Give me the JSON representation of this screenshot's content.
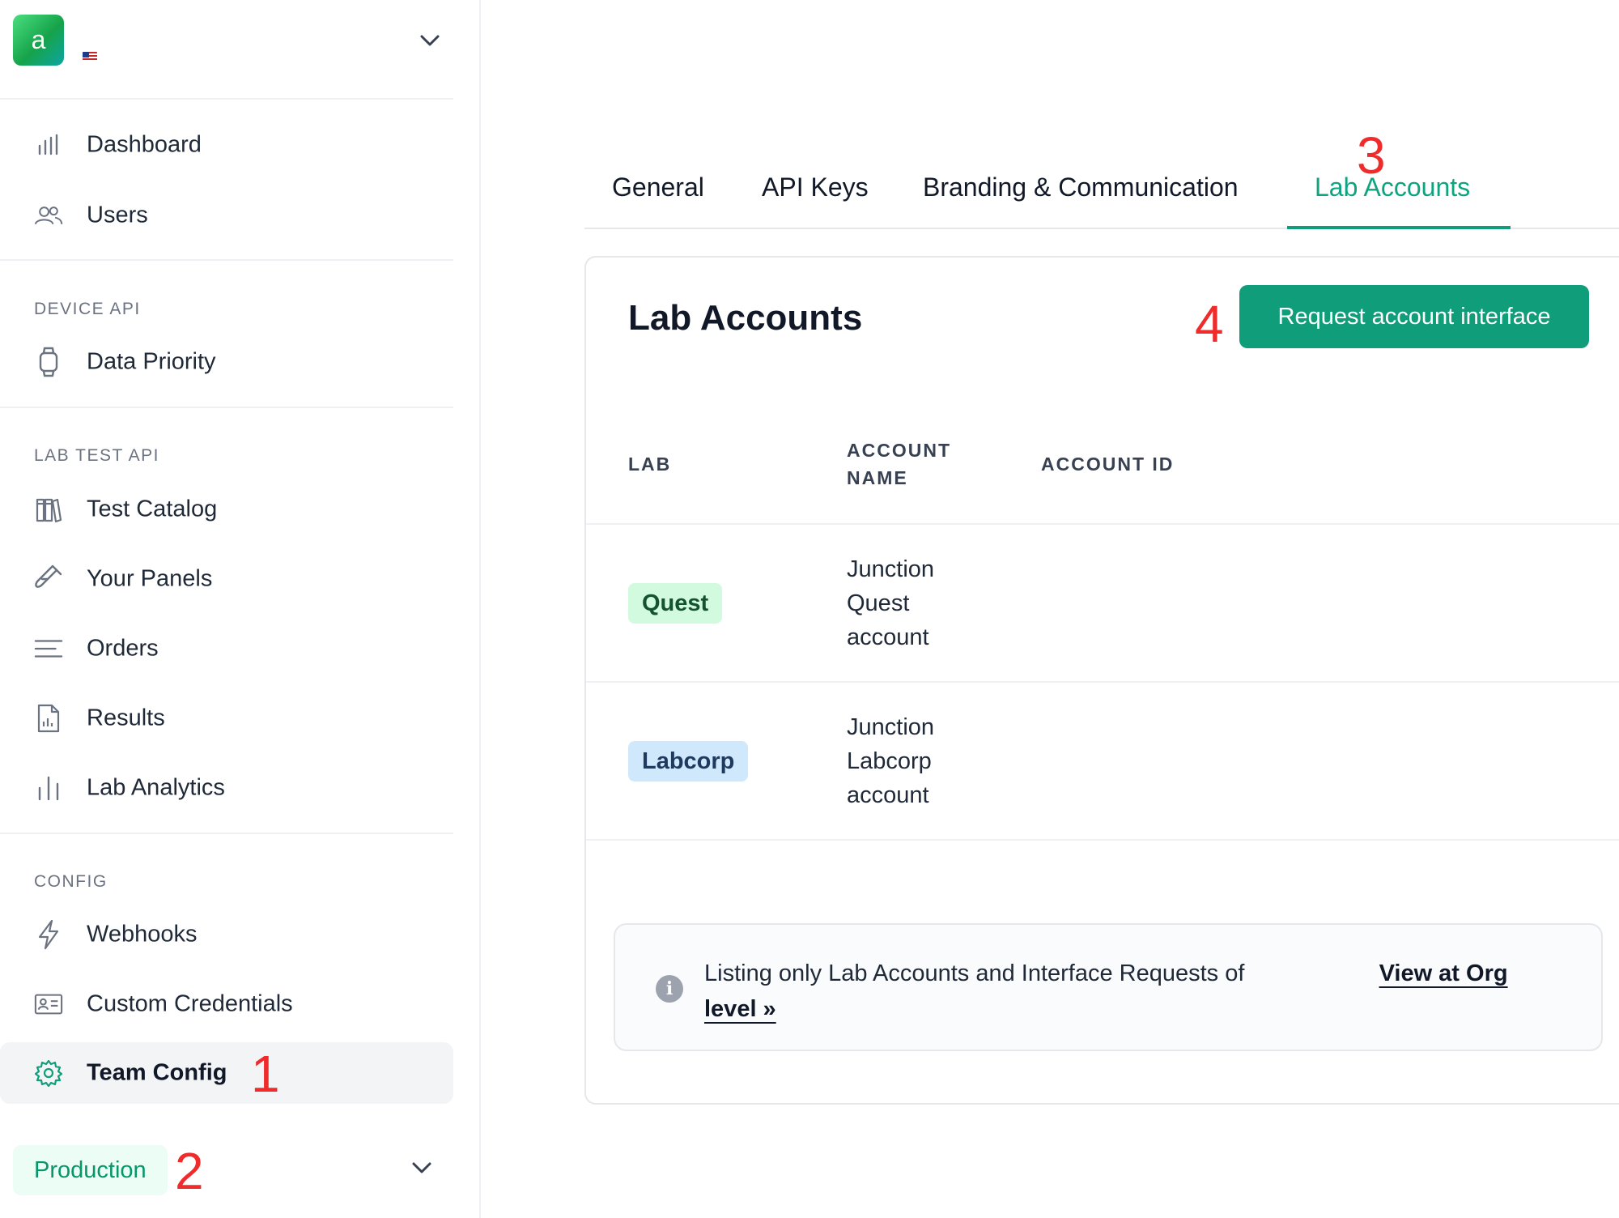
{
  "org": {
    "avatar_letter": "a",
    "flag_icon": "us-flag-icon"
  },
  "sidebar": {
    "top_items": [
      {
        "label": "Dashboard",
        "icon": "bar-chart-icon"
      },
      {
        "label": "Users",
        "icon": "users-icon"
      }
    ],
    "sections": [
      {
        "title": "DEVICE API",
        "items": [
          {
            "label": "Data Priority",
            "icon": "watch-icon"
          }
        ]
      },
      {
        "title": "LAB TEST API",
        "items": [
          {
            "label": "Test Catalog",
            "icon": "book-icon"
          },
          {
            "label": "Your Panels",
            "icon": "test-tube-icon"
          },
          {
            "label": "Orders",
            "icon": "list-icon"
          },
          {
            "label": "Results",
            "icon": "report-icon"
          },
          {
            "label": "Lab Analytics",
            "icon": "analytics-icon"
          }
        ]
      },
      {
        "title": "CONFIG",
        "items": [
          {
            "label": "Webhooks",
            "icon": "lightning-icon"
          },
          {
            "label": "Custom Credentials",
            "icon": "id-card-icon"
          },
          {
            "label": "Team Config",
            "icon": "gear-icon",
            "active": true
          }
        ]
      }
    ],
    "environment": "Production"
  },
  "annotations": [
    "1",
    "2",
    "3",
    "4"
  ],
  "tabs": [
    {
      "label": "General"
    },
    {
      "label": "API Keys"
    },
    {
      "label": "Branding & Communication"
    },
    {
      "label": "Lab Accounts",
      "active": true
    }
  ],
  "card": {
    "title": "Lab Accounts",
    "request_button": "Request account interface",
    "columns": {
      "lab": "LAB",
      "account_name_1": "ACCOUNT",
      "account_name_2": "NAME",
      "account_id": "ACCOUNT ID"
    },
    "rows": [
      {
        "lab": "Quest",
        "account_name": [
          "Junction",
          "Quest",
          "account"
        ],
        "account_id": ""
      },
      {
        "lab": "Labcorp",
        "account_name": [
          "Junction",
          "Labcorp",
          "account"
        ],
        "account_id": ""
      }
    ],
    "info": {
      "text": "Listing only Lab Accounts and Interface Requests of",
      "link": "View at Org level »"
    }
  },
  "colors": {
    "accent": "#0f9d7a",
    "active_tab": "#10a37f",
    "annotation": "#ef2b2b"
  }
}
